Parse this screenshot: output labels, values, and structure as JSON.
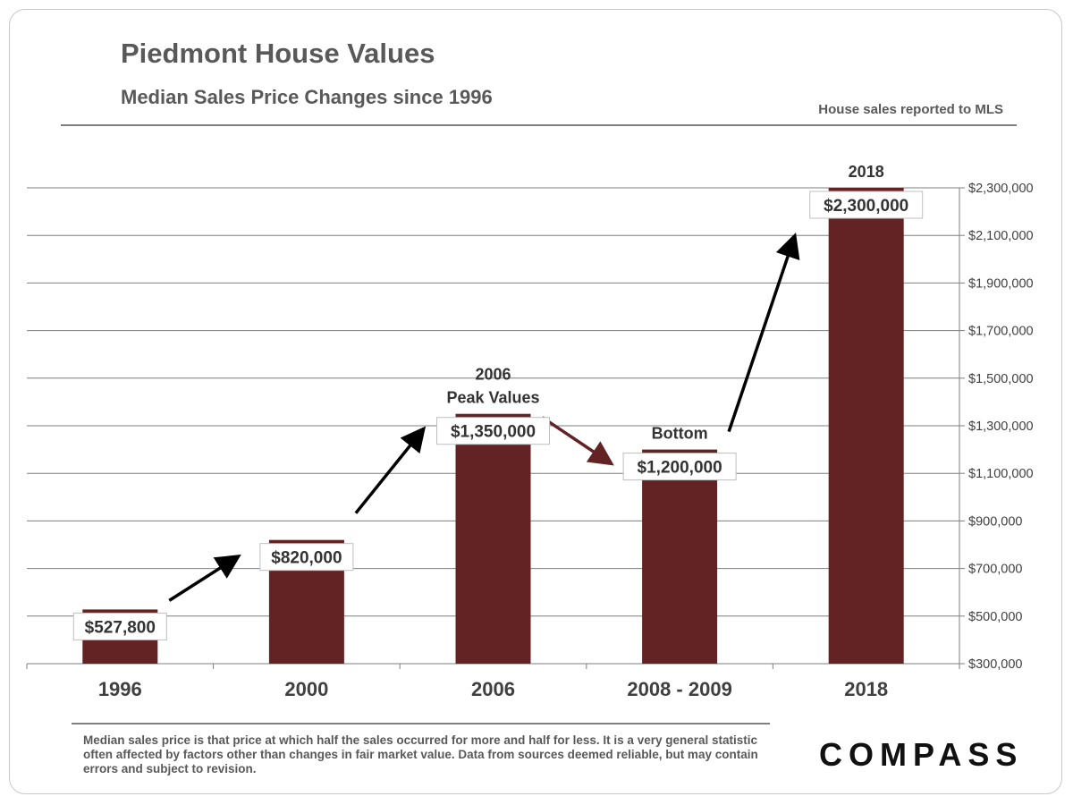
{
  "header": {
    "title": "Piedmont House Values",
    "subtitle": "Median Sales Price Changes since 1996",
    "source_note": "House sales reported to MLS"
  },
  "footer": {
    "footnote": "Median sales price is that price at which half the sales occurred for more and half for less. It is a very general statistic often affected by factors other than changes in fair market value. Data from sources deemed reliable, but may contain errors and subject to revision.",
    "logo_text": "COMPASS"
  },
  "colors": {
    "bar": "#632325",
    "arrow_up": "#000000",
    "arrow_down": "#632325",
    "grid": "#7f7f7f"
  },
  "chart_data": {
    "type": "bar",
    "categories": [
      "1996",
      "2000",
      "2006",
      "2008 - 2009",
      "2018"
    ],
    "values": [
      527800,
      820000,
      1350000,
      1200000,
      2300000
    ],
    "data_labels": [
      "$527,800",
      "$820,000",
      "$1,350,000",
      "$1,200,000",
      "$2,300,000"
    ],
    "ylim": [
      300000,
      2300000
    ],
    "y_ticks": [
      300000,
      500000,
      700000,
      900000,
      1100000,
      1300000,
      1500000,
      1700000,
      1900000,
      2100000,
      2300000
    ],
    "y_tick_labels": [
      "$300,000",
      "$500,000",
      "$700,000",
      "$900,000",
      "$1,100,000",
      "$1,300,000",
      "$1,500,000",
      "$1,700,000",
      "$1,900,000",
      "$2,100,000",
      "$2,300,000"
    ],
    "y_axis_side": "right",
    "grid": true,
    "legend": "none",
    "annotations": [
      {
        "category": "2006",
        "lines": [
          "2006",
          "Peak Values"
        ]
      },
      {
        "category": "2008 - 2009",
        "lines": [
          "Bottom"
        ]
      },
      {
        "category": "2018",
        "lines": [
          "2018"
        ]
      }
    ],
    "arrows": [
      {
        "from": "1996",
        "to": "2000",
        "direction": "up"
      },
      {
        "from": "2000",
        "to": "2006",
        "direction": "up"
      },
      {
        "from": "2006",
        "to": "2008 - 2009",
        "direction": "down"
      },
      {
        "from": "2008 - 2009",
        "to": "2018",
        "direction": "up"
      }
    ]
  }
}
